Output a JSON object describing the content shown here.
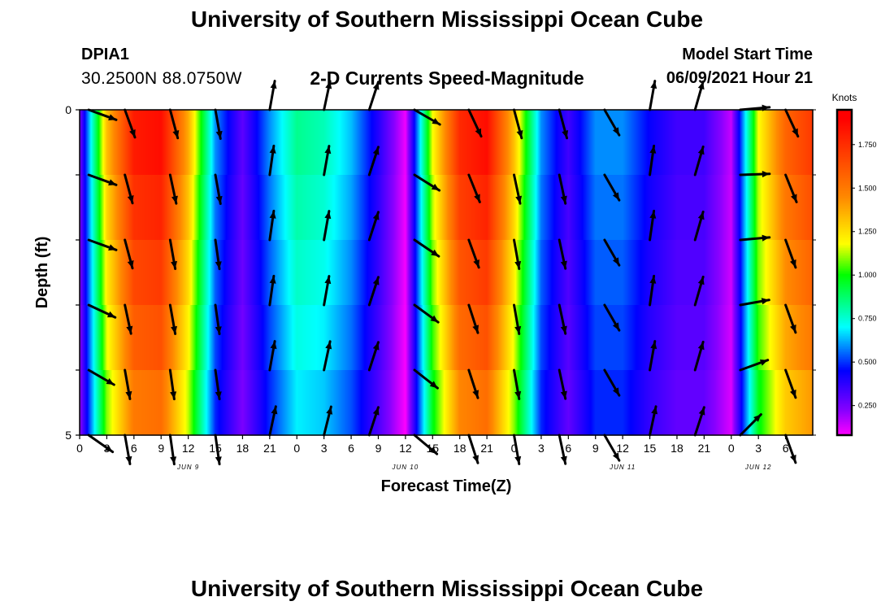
{
  "header": {
    "title": "University of Southern Mississippi Ocean Cube",
    "station_id": "DPIA1",
    "coords": "30.2500N  88.0750W",
    "subtitle": "2-D Currents Speed-Magnitude",
    "start_label": "Model Start Time",
    "start_value": "06/09/2021 Hour 21"
  },
  "footer": {
    "title": "University of Southern Mississippi Ocean Cube"
  },
  "colors": {
    "magenta": "#ff00ff",
    "purple": "#8800ff",
    "blue": "#0000ff",
    "cyan": "#00ffff",
    "green": "#00ff00",
    "yellow": "#ffff00",
    "orange": "#ff8800",
    "red": "#ff0000"
  },
  "chart_data": {
    "type": "heatmap",
    "title": "2-D Currents Speed-Magnitude",
    "xlabel": "Forecast Time(Z)",
    "ylabel": "Depth (ft)",
    "x_hours": [
      0,
      3,
      6,
      9,
      12,
      15,
      18,
      21,
      24,
      27,
      30,
      33,
      36,
      39,
      42,
      45,
      48,
      51,
      54,
      57,
      60,
      63,
      66,
      69,
      72,
      75,
      78,
      81
    ],
    "xticks": [
      "0",
      "3",
      "6",
      "9",
      "12",
      "15",
      "18",
      "21",
      "0",
      "3",
      "6",
      "9",
      "12",
      "15",
      "18",
      "21",
      "0",
      "3",
      "6",
      "9",
      "12",
      "15",
      "18",
      "21",
      "0",
      "3",
      "6"
    ],
    "day_labels": [
      {
        "hour": 12,
        "label": "JUN 9"
      },
      {
        "hour": 36,
        "label": "JUN 10"
      },
      {
        "hour": 60,
        "label": "JUN 11"
      },
      {
        "hour": 75,
        "label": "JUN 12"
      }
    ],
    "yticks": [
      "0",
      "5"
    ],
    "ylim": [
      0,
      5
    ],
    "depth_levels": [
      0,
      1,
      2,
      3,
      4,
      5
    ],
    "speed_at_hour": [
      0.25,
      1.35,
      1.85,
      1.9,
      1.4,
      0.6,
      0.3,
      0.6,
      0.85,
      0.8,
      0.65,
      0.4,
      0.1,
      1.2,
      1.8,
      1.9,
      1.35,
      0.6,
      0.35,
      0.6,
      0.6,
      0.45,
      0.35,
      0.35,
      0.15,
      1.2,
      1.6,
      1.75
    ],
    "depth_factor": [
      1.0,
      0.96,
      0.92,
      0.88,
      0.84,
      0.78
    ],
    "arrows": {
      "hours": [
        1,
        5,
        10,
        15,
        21,
        27,
        32,
        37,
        43,
        48,
        53,
        58,
        63,
        68,
        73,
        78
      ],
      "depths": [
        0,
        1,
        2,
        3,
        4,
        5
      ],
      "angles_deg": [
        [
          110,
          110,
          110,
          115,
          120,
          125
        ],
        [
          160,
          165,
          165,
          168,
          170,
          170
        ],
        [
          165,
          168,
          170,
          170,
          172,
          172
        ],
        [
          170,
          170,
          172,
          172,
          172,
          172
        ],
        [
          10,
          8,
          8,
          8,
          10,
          12
        ],
        [
          12,
          10,
          10,
          10,
          12,
          14
        ],
        [
          18,
          18,
          18,
          18,
          18,
          18
        ],
        [
          120,
          122,
          124,
          126,
          128,
          130
        ],
        [
          155,
          158,
          160,
          162,
          162,
          162
        ],
        [
          165,
          168,
          170,
          170,
          170,
          170
        ],
        [
          165,
          168,
          168,
          168,
          168,
          168
        ],
        [
          150,
          150,
          150,
          150,
          150,
          150
        ],
        [
          10,
          8,
          8,
          8,
          10,
          12
        ],
        [
          16,
          16,
          16,
          16,
          16,
          18
        ],
        [
          85,
          88,
          85,
          80,
          70,
          45
        ],
        [
          155,
          158,
          160,
          160,
          160,
          160
        ]
      ]
    },
    "colorbar": {
      "label": "Knots",
      "ticks": [
        "0.250",
        "0.500",
        "0.750",
        "1.000",
        "1.250",
        "1.500",
        "1.750"
      ],
      "range": [
        0.08,
        1.95
      ]
    }
  }
}
